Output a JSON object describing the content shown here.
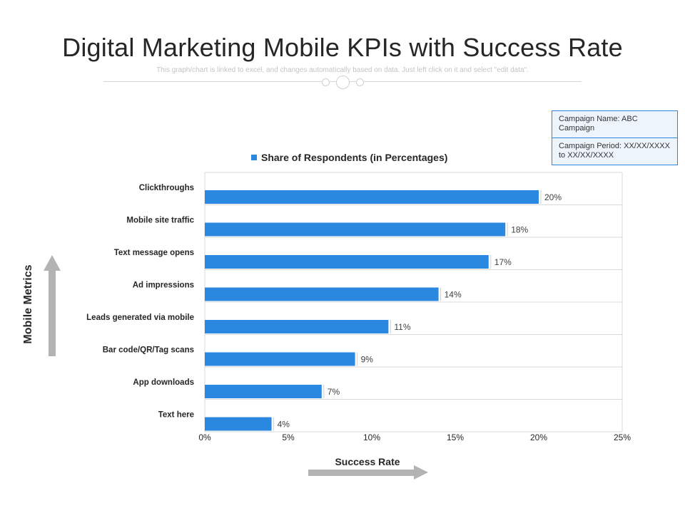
{
  "header": {
    "title": "Digital Marketing Mobile KPIs with Success Rate",
    "subtitle": "This graph/chart is linked to excel, and changes automatically  based on data. Just left click on it and select \"edit data\"."
  },
  "info_box": {
    "campaign_name": "Campaign Name: ABC Campaign",
    "campaign_period": "Campaign Period: XX/XX/XXXX  to XX/XX/XXXX"
  },
  "colors": {
    "bar": "#2b88e0",
    "grid": "#d9d9d9",
    "arrow": "#b3b3b3"
  },
  "chart_data": {
    "type": "bar",
    "orientation": "horizontal",
    "categories": [
      "Clickthroughs",
      "Mobile site traffic",
      "Text message opens",
      "Ad impressions",
      "Leads generated via mobile",
      "Bar code/QR/Tag scans",
      "App downloads",
      "Text here"
    ],
    "series": [
      {
        "name": "Share of Respondents (in Percentages)",
        "values": [
          20,
          18,
          17,
          14,
          11,
          9,
          7,
          4
        ]
      }
    ],
    "data_labels": [
      "20%",
      "18%",
      "17%",
      "14%",
      "11%",
      "9%",
      "7%",
      "4%"
    ],
    "xticks": [
      "0%",
      "5%",
      "10%",
      "15%",
      "20%",
      "25%"
    ],
    "xlim": [
      0,
      25
    ],
    "xlabel": "Success Rate",
    "ylabel": "Mobile Metrics",
    "grid": "horizontal",
    "legend": "top"
  }
}
